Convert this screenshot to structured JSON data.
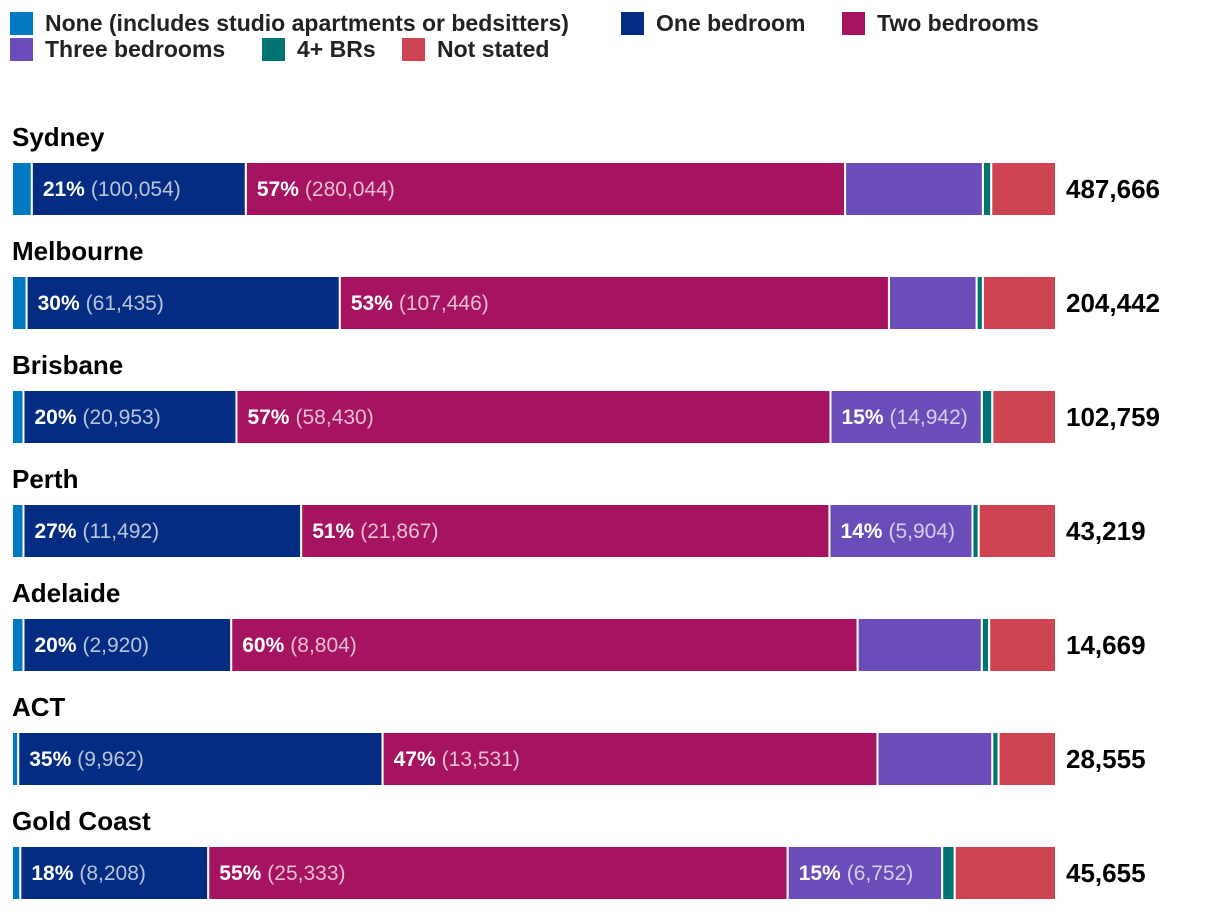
{
  "chart_data": {
    "type": "bar",
    "orientation": "horizontal",
    "stacked": true,
    "normalized": true,
    "title": "",
    "xlabel": "",
    "ylabel": "",
    "legend_position": "top-left",
    "categories": [
      "Sydney",
      "Melbourne",
      "Brisbane",
      "Perth",
      "Adelaide",
      "ACT",
      "Gold Coast"
    ],
    "totals": [
      "487,666",
      "204,442",
      "102,759",
      "43,219",
      "14,669",
      "28,555",
      "45,655"
    ],
    "series": [
      {
        "name": "None (includes studio apartments or bedsitters)",
        "color": "#0079C2",
        "shares": [
          1.9,
          1.4,
          1.1,
          1.1,
          1.1,
          0.6,
          0.8
        ],
        "labels": [
          null,
          null,
          null,
          null,
          null,
          null,
          null
        ]
      },
      {
        "name": "One bedroom",
        "color": "#032C82",
        "shares": [
          20.5,
          30.0,
          20.4,
          26.6,
          19.9,
          34.9,
          18.0
        ],
        "labels": [
          {
            "pct": "21%",
            "val": "(100,054)"
          },
          {
            "pct": "30%",
            "val": "(61,435)"
          },
          {
            "pct": "20%",
            "val": "(20,953)"
          },
          {
            "pct": "27%",
            "val": "(11,492)"
          },
          {
            "pct": "20%",
            "val": "(2,920)"
          },
          {
            "pct": "35%",
            "val": "(9,962)"
          },
          {
            "pct": "18%",
            "val": "(8,208)"
          }
        ]
      },
      {
        "name": "Two bedrooms",
        "color": "#A51361",
        "shares": [
          57.4,
          52.6,
          56.9,
          50.6,
          60.0,
          47.4,
          55.5
        ],
        "labels": [
          {
            "pct": "57%",
            "val": "(280,044)"
          },
          {
            "pct": "53%",
            "val": "(107,446)"
          },
          {
            "pct": "57%",
            "val": "(58,430)"
          },
          {
            "pct": "51%",
            "val": "(21,867)"
          },
          {
            "pct": "60%",
            "val": "(8,804)"
          },
          {
            "pct": "47%",
            "val": "(13,531)"
          },
          {
            "pct": "55%",
            "val": "(25,333)"
          }
        ]
      },
      {
        "name": "Three bedrooms",
        "color": "#6A4DB8",
        "shares": [
          13.2,
          8.4,
          14.5,
          13.7,
          11.9,
          11.0,
          14.8
        ],
        "labels": [
          null,
          null,
          {
            "pct": "15%",
            "val": "(14,942)"
          },
          {
            "pct": "14%",
            "val": "(5,904)"
          },
          null,
          null,
          {
            "pct": "15%",
            "val": "(6,752)"
          }
        ]
      },
      {
        "name": "4+ BRs",
        "color": "#007373",
        "shares": [
          0.8,
          0.6,
          1.0,
          0.6,
          0.7,
          0.6,
          1.2
        ],
        "labels": [
          null,
          null,
          null,
          null,
          null,
          null,
          null
        ]
      },
      {
        "name": "Not stated",
        "color": "#CF4453",
        "shares": [
          6.2,
          7.0,
          6.1,
          7.4,
          6.4,
          5.5,
          9.7
        ],
        "labels": [
          null,
          null,
          null,
          null,
          null,
          null,
          null
        ]
      }
    ]
  }
}
